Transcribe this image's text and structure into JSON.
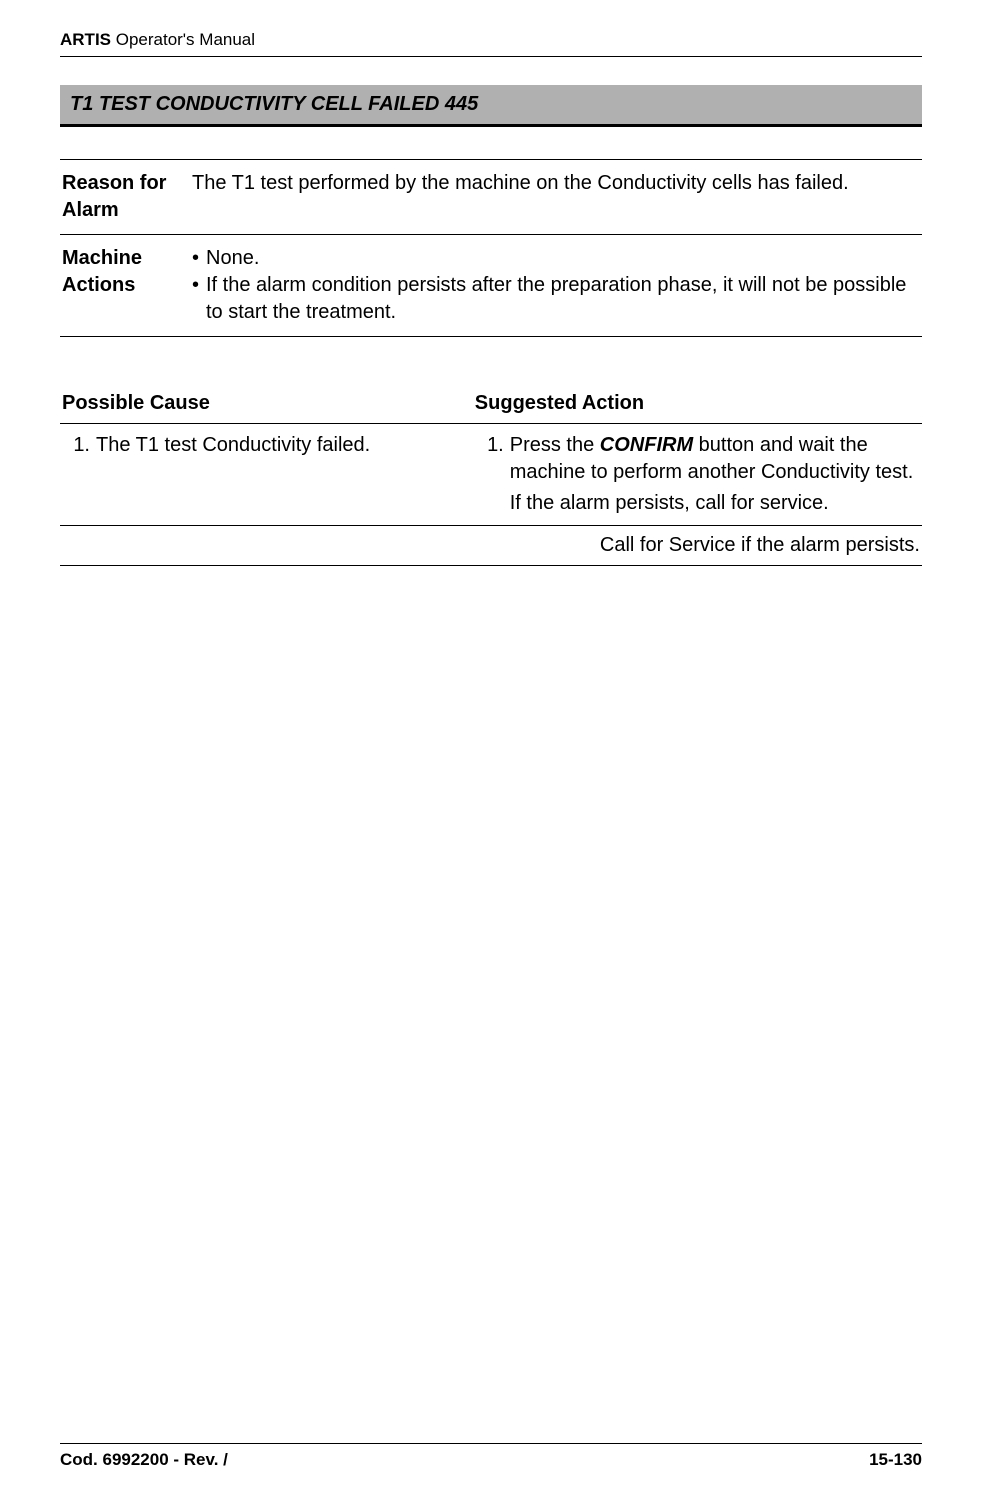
{
  "header": {
    "brand_bold": "ARTIS",
    "brand_rest": " Operator's Manual"
  },
  "title_bar": "T1 TEST CONDUCTIVITY CELL FAILED 445",
  "info_rows": [
    {
      "label": "Reason for Alarm",
      "plain": "The T1 test performed by the machine on the Conductivity cells has failed."
    },
    {
      "label": "Machine Actions",
      "bullets": [
        "None.",
        "If the alarm condition persists after the preparation phase, it will not be possible to start the treatment."
      ]
    }
  ],
  "cause_header": {
    "col1": "Possible Cause",
    "col2": "Suggested Action"
  },
  "cause_rows": [
    {
      "num": "1.",
      "cause": "The T1 test Conductivity failed.",
      "action_num": "1.",
      "action_pre": "Press the ",
      "action_bold": "CONFIRM",
      "action_post": " button and wait the machine to perform another Conductivity test.",
      "action_extra": "If the alarm persists, call for service."
    }
  ],
  "service_line": "Call for Service if the alarm persists.",
  "footer": {
    "left": "Cod. 6992200 - Rev. /",
    "right": "15-130"
  }
}
